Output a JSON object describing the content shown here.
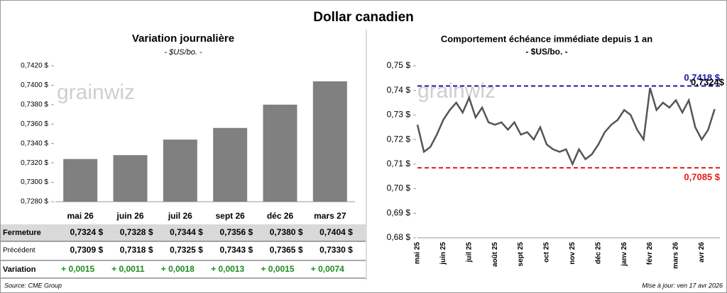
{
  "title": "Dollar canadien",
  "source": "Source: CME Group",
  "updated": "Mise à jour: ven 17 avr 2026",
  "chart_data": [
    {
      "type": "bar",
      "title": "Variation journalière",
      "subtitle": "- $US/bo. -",
      "watermark": "grainwiz",
      "categories": [
        "mai 26",
        "juin 26",
        "juil 26",
        "sept 26",
        "déc 26",
        "mars 27"
      ],
      "values": [
        0.7324,
        0.7328,
        0.7344,
        0.7356,
        0.738,
        0.7404
      ],
      "value_labels": [
        "0,7324 $",
        "0,7328 $",
        "0,7344 $",
        "0,7356 $",
        "0,7380 $",
        "0,7404 $"
      ],
      "color": "#808080",
      "ylim": [
        0.728,
        0.742
      ],
      "yticks": [
        {
          "value": 0.728,
          "label": "0,7280 $"
        },
        {
          "value": 0.73,
          "label": "0,7300 $"
        },
        {
          "value": 0.732,
          "label": "0,7320 $"
        },
        {
          "value": 0.734,
          "label": "0,7340 $"
        },
        {
          "value": 0.736,
          "label": "0,7360 $"
        },
        {
          "value": 0.738,
          "label": "0,7380 $"
        },
        {
          "value": 0.74,
          "label": "0,7400 $"
        },
        {
          "value": 0.742,
          "label": "0,7420 $"
        }
      ]
    },
    {
      "type": "line",
      "title": "Comportement échéance immédiate depuis 1 an",
      "subtitle": "- $US/bo. -",
      "watermark": "grainwiz",
      "categories": [
        "mai 25",
        null,
        null,
        null,
        "juin 25",
        null,
        null,
        null,
        "juil 25",
        null,
        null,
        null,
        "août 25",
        null,
        null,
        null,
        "sept 25",
        null,
        null,
        null,
        "oct 25",
        null,
        null,
        null,
        "nov 25",
        null,
        null,
        null,
        "déc 25",
        null,
        null,
        null,
        "janv 26",
        null,
        null,
        null,
        "févr 26",
        null,
        null,
        null,
        "mars 26",
        null,
        null,
        null,
        "avr 26",
        null,
        null
      ],
      "values": [
        0.726,
        0.715,
        0.717,
        0.722,
        0.728,
        0.732,
        0.735,
        0.731,
        0.737,
        0.729,
        0.733,
        0.727,
        0.726,
        0.727,
        0.724,
        0.727,
        0.722,
        0.723,
        0.72,
        0.725,
        0.718,
        0.716,
        0.715,
        0.716,
        0.71,
        0.716,
        0.712,
        0.714,
        0.718,
        0.723,
        0.726,
        0.728,
        0.732,
        0.73,
        0.724,
        0.72,
        0.741,
        0.732,
        0.735,
        0.733,
        0.736,
        0.731,
        0.736,
        0.725,
        0.72,
        0.724,
        0.7324
      ],
      "color": "#555555",
      "ylim": [
        0.68,
        0.75
      ],
      "yticks": [
        {
          "value": 0.68,
          "label": "0,68 $"
        },
        {
          "value": 0.69,
          "label": "0,69 $"
        },
        {
          "value": 0.7,
          "label": "0,70 $"
        },
        {
          "value": 0.71,
          "label": "0,71 $"
        },
        {
          "value": 0.72,
          "label": "0,72 $"
        },
        {
          "value": 0.73,
          "label": "0,73 $"
        },
        {
          "value": 0.74,
          "label": "0,74 $"
        },
        {
          "value": 0.75,
          "label": "0,75 $"
        }
      ],
      "reference_lines": [
        {
          "value": 0.7418,
          "label": "0,7418 $",
          "color": "#1a1aa6"
        },
        {
          "value": 0.7085,
          "label": "0,7085 $",
          "color": "#e31b1b"
        }
      ],
      "annotations": [
        {
          "value": 0.7324,
          "text": "0,7324$"
        }
      ]
    }
  ],
  "table": {
    "rows": [
      {
        "label": "Fermeture"
      },
      {
        "label": "Précédent",
        "cells": [
          "0,7309 $",
          "0,7318 $",
          "0,7325 $",
          "0,7343 $",
          "0,7365 $",
          "0,7330 $"
        ]
      },
      {
        "label": "Variation",
        "cells": [
          "+ 0,0015",
          "+ 0,0011",
          "+ 0,0018",
          "+ 0,0013",
          "+ 0,0015",
          "+ 0,0074"
        ]
      }
    ]
  }
}
